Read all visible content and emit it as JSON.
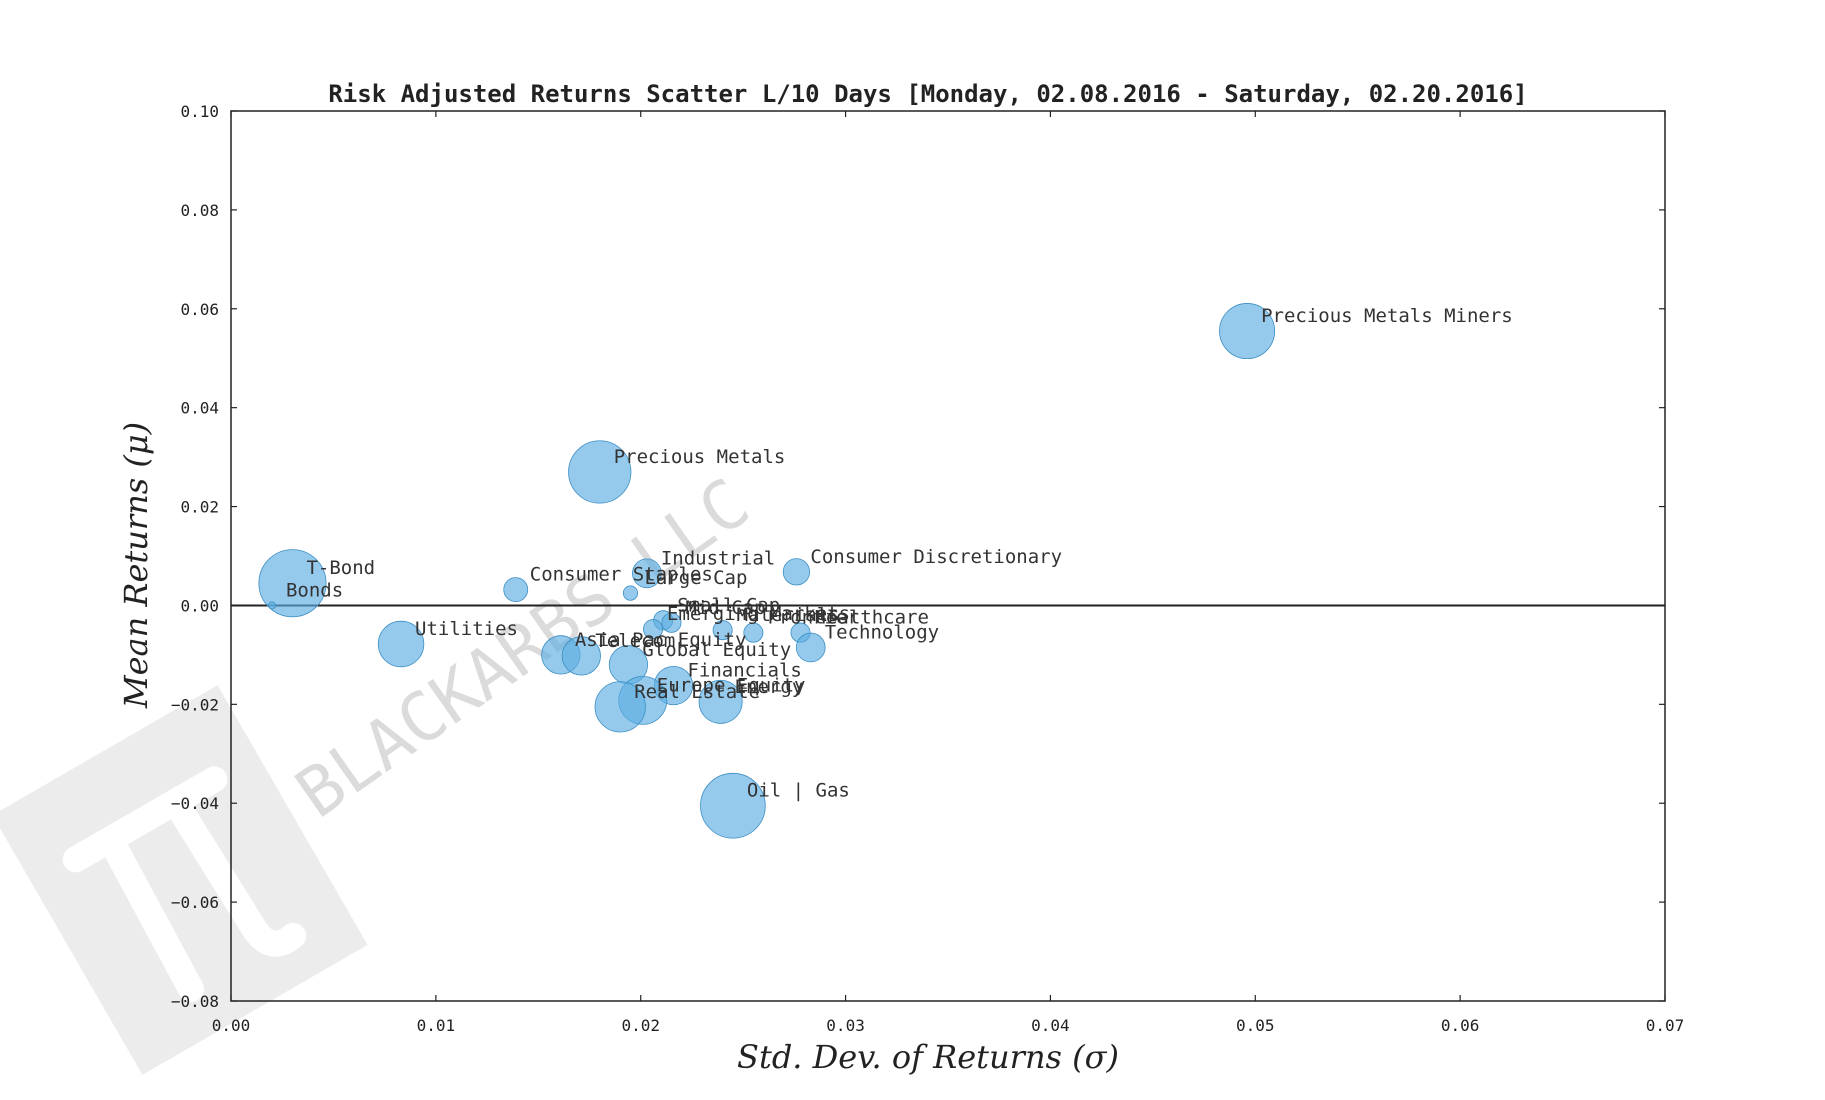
{
  "chart_data": {
    "type": "scatter",
    "title": "Risk Adjusted Returns Scatter L/10 Days [Monday, 02.08.2016 - Saturday, 02.20.2016]",
    "xlabel": "Std. Dev. of Returns (σ)",
    "ylabel": "Mean Returns (μ)",
    "xlim": [
      0.0,
      0.07
    ],
    "ylim": [
      -0.08,
      0.1
    ],
    "x_ticks": [
      "0.00",
      "0.01",
      "0.02",
      "0.03",
      "0.04",
      "0.05",
      "0.06",
      "0.07"
    ],
    "y_ticks": [
      "0.10",
      "0.08",
      "0.06",
      "0.04",
      "0.02",
      "0.00",
      "−0.02",
      "−0.04",
      "−0.06",
      "−0.08"
    ],
    "x_tick_values": [
      0.0,
      0.01,
      0.02,
      0.03,
      0.04,
      0.05,
      0.06,
      0.07
    ],
    "y_tick_values": [
      0.1,
      0.08,
      0.06,
      0.04,
      0.02,
      0.0,
      -0.02,
      -0.04,
      -0.06,
      -0.08
    ],
    "zero_line": 0.0,
    "grid": false,
    "marker_color": "#5DADE2",
    "watermark_text": "BLACKARBS LLC",
    "points": [
      {
        "label": "Precious Metals Miners",
        "x": 0.0496,
        "y": 0.0555,
        "size": 2.3
      },
      {
        "label": "Precious Metals",
        "x": 0.018,
        "y": 0.027,
        "size": 2.6
      },
      {
        "label": "T-Bond",
        "x": 0.003,
        "y": 0.0045,
        "size": 2.8
      },
      {
        "label": "Bonds",
        "x": 0.002,
        "y": 0.0,
        "size": 0.3
      },
      {
        "label": "Consumer Staples",
        "x": 0.0139,
        "y": 0.0032,
        "size": 1.0
      },
      {
        "label": "Industrial",
        "x": 0.0203,
        "y": 0.0065,
        "size": 1.2
      },
      {
        "label": "Consumer Discretionary",
        "x": 0.0276,
        "y": 0.0068,
        "size": 1.1
      },
      {
        "label": "Large Cap",
        "x": 0.0195,
        "y": 0.0025,
        "size": 0.6
      },
      {
        "label": "Small Cap",
        "x": 0.0211,
        "y": -0.003,
        "size": 0.8
      },
      {
        "label": "Mid Cap",
        "x": 0.0215,
        "y": -0.0035,
        "size": 0.8
      },
      {
        "label": "Healthcare",
        "x": 0.0278,
        "y": -0.0055,
        "size": 0.8
      },
      {
        "label": "Emerging Markets",
        "x": 0.0206,
        "y": -0.0048,
        "size": 0.8
      },
      {
        "label": "Materials",
        "x": 0.024,
        "y": -0.005,
        "size": 0.8
      },
      {
        "label": "Frontier",
        "x": 0.0255,
        "y": -0.0055,
        "size": 0.8
      },
      {
        "label": "Technology",
        "x": 0.0283,
        "y": -0.0085,
        "size": 1.2
      },
      {
        "label": "Utilities",
        "x": 0.0083,
        "y": -0.0078,
        "size": 1.9
      },
      {
        "label": "Asia Pac Equity",
        "x": 0.0161,
        "y": -0.01,
        "size": 1.6
      },
      {
        "label": "Telecom",
        "x": 0.0171,
        "y": -0.0102,
        "size": 1.6
      },
      {
        "label": "Global Equity",
        "x": 0.0194,
        "y": -0.012,
        "size": 1.6
      },
      {
        "label": "Financials",
        "x": 0.0216,
        "y": -0.0162,
        "size": 1.6
      },
      {
        "label": "Europe Equity",
        "x": 0.0201,
        "y": -0.0192,
        "size": 2.0
      },
      {
        "label": "Energy",
        "x": 0.0239,
        "y": -0.0195,
        "size": 1.8
      },
      {
        "label": "Real Estate",
        "x": 0.019,
        "y": -0.0205,
        "size": 2.1
      },
      {
        "label": "Oil | Gas",
        "x": 0.0245,
        "y": -0.0405,
        "size": 2.7
      }
    ]
  }
}
